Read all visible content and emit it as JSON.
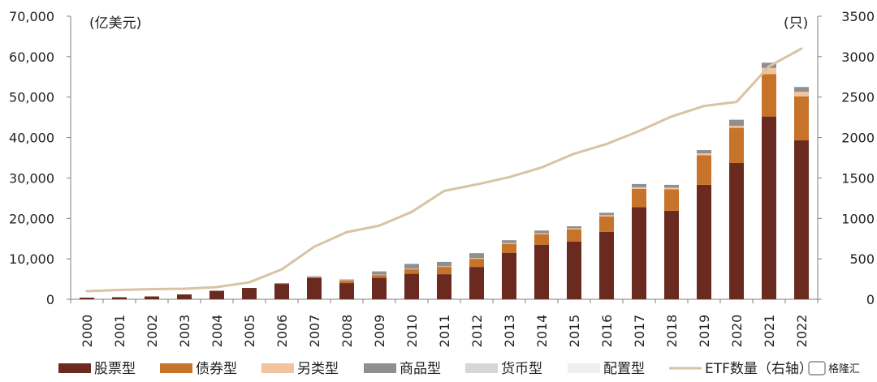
{
  "chart_data": {
    "type": "bar",
    "stacked": true,
    "categories": [
      "2000",
      "2001",
      "2002",
      "2003",
      "2004",
      "2005",
      "2006",
      "2007",
      "2008",
      "2009",
      "2010",
      "2011",
      "2012",
      "2013",
      "2014",
      "2015",
      "2016",
      "2017",
      "2018",
      "2019",
      "2020",
      "2021",
      "2022"
    ],
    "series": [
      {
        "name": "股票型",
        "color": "#6b2a1f",
        "axis": "left",
        "values": [
          400,
          500,
          700,
          1200,
          2100,
          2800,
          3800,
          5300,
          4000,
          5300,
          6300,
          6200,
          8000,
          11500,
          13500,
          14300,
          16700,
          22800,
          21900,
          28300,
          33700,
          45200,
          39300
        ]
      },
      {
        "name": "债券型",
        "color": "#c8732a",
        "axis": "left",
        "values": [
          0,
          0,
          0,
          0,
          0,
          0,
          100,
          200,
          600,
          700,
          1100,
          1800,
          2000,
          2200,
          2600,
          3000,
          3800,
          4500,
          5300,
          7300,
          8700,
          10500,
          10900
        ]
      },
      {
        "name": "另类型",
        "color": "#f0c4a0",
        "axis": "left",
        "values": [
          0,
          0,
          0,
          0,
          0,
          0,
          0,
          50,
          100,
          100,
          150,
          150,
          200,
          200,
          200,
          250,
          300,
          400,
          400,
          500,
          500,
          1500,
          1100
        ]
      },
      {
        "name": "商品型",
        "color": "#8f8f8f",
        "axis": "left",
        "values": [
          0,
          0,
          0,
          0,
          0,
          0,
          100,
          150,
          200,
          800,
          1200,
          1100,
          1200,
          700,
          700,
          500,
          600,
          800,
          700,
          800,
          1500,
          1300,
          1200
        ]
      },
      {
        "name": "货币型",
        "color": "#d6d6d6",
        "axis": "left",
        "values": [
          0,
          0,
          0,
          0,
          0,
          0,
          0,
          0,
          0,
          0,
          0,
          0,
          0,
          0,
          0,
          0,
          0,
          0,
          0,
          0,
          0,
          0,
          0
        ]
      },
      {
        "name": "配置型",
        "color": "#efefef",
        "axis": "left",
        "values": [
          0,
          0,
          0,
          0,
          0,
          0,
          0,
          0,
          0,
          0,
          0,
          0,
          0,
          0,
          0,
          0,
          0,
          0,
          0,
          0,
          0,
          0,
          0
        ]
      },
      {
        "name": "ETF数量（右轴）",
        "color": "#d9c3a5",
        "type": "line",
        "axis": "right",
        "values": [
          100,
          115,
          125,
          130,
          150,
          210,
          370,
          650,
          830,
          910,
          1080,
          1340,
          1420,
          1510,
          1630,
          1800,
          1920,
          2080,
          2260,
          2390,
          2440,
          2880,
          3100
        ]
      }
    ],
    "y_left": {
      "unit": "(亿美元)",
      "ylim": [
        0,
        70000
      ],
      "ticks": [
        "0",
        "10,000",
        "20,000",
        "30,000",
        "40,000",
        "50,000",
        "60,000",
        "70,000"
      ]
    },
    "y_right": {
      "unit": "(只)",
      "ylim": [
        0,
        3500
      ],
      "ticks": [
        "0",
        "500",
        "1000",
        "1500",
        "2000",
        "2500",
        "3000",
        "3500"
      ]
    },
    "legend_position": "bottom",
    "grid": false
  },
  "watermark": "格隆汇"
}
